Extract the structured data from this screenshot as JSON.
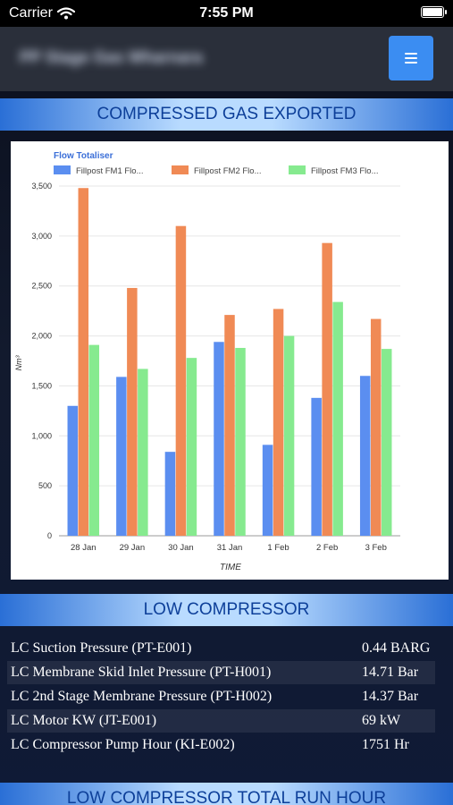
{
  "status_bar": {
    "carrier": "Carrier",
    "time": "7:55 PM"
  },
  "header": {
    "title": "PP Stage Gas Wharnara",
    "menu_icon": "hamburger-icon"
  },
  "sections": {
    "gas_exported": "COMPRESSED GAS EXPORTED",
    "low_compressor": "LOW COMPRESSOR",
    "low_compressor_run_hour": "LOW COMPRESSOR TOTAL RUN HOUR"
  },
  "chart_data": {
    "type": "bar",
    "title": "Flow Totaliser",
    "xlabel": "TIME",
    "ylabel": "Nm³",
    "ylim": [
      0,
      3500
    ],
    "yticks": [
      "0",
      "500",
      "1,000",
      "1,500",
      "2,000",
      "2,500",
      "3,000",
      "3,500"
    ],
    "categories": [
      "28 Jan",
      "29 Jan",
      "30 Jan",
      "31 Jan",
      "1 Feb",
      "2 Feb",
      "3 Feb"
    ],
    "legend_position": "top",
    "series": [
      {
        "name": "Fillpost FM1 Flo...",
        "color": "#5b8ef0",
        "values": [
          1300,
          1590,
          840,
          1940,
          910,
          1380,
          1600
        ]
      },
      {
        "name": "Fillpost FM2 Flo...",
        "color": "#f08a55",
        "values": [
          3480,
          2480,
          3100,
          2210,
          2270,
          2930,
          2170
        ]
      },
      {
        "name": "Fillpost FM3 Flo...",
        "color": "#86ea8f",
        "values": [
          1910,
          1670,
          1780,
          1880,
          2000,
          2340,
          1870
        ]
      }
    ]
  },
  "low_compressor": [
    {
      "label": "LC Suction Pressure (PT-E001)",
      "value": "0.44 BARG"
    },
    {
      "label": "LC Membrane Skid Inlet Pressure (PT-H001)",
      "value": "14.71 Bar"
    },
    {
      "label": "LC 2nd Stage Membrane Pressure (PT-H002)",
      "value": "14.37 Bar"
    },
    {
      "label": "LC Motor KW (JT-E001)",
      "value": "69 kW"
    },
    {
      "label": "LC Compressor Pump Hour (KI-E002)",
      "value": "1751 Hr"
    }
  ]
}
